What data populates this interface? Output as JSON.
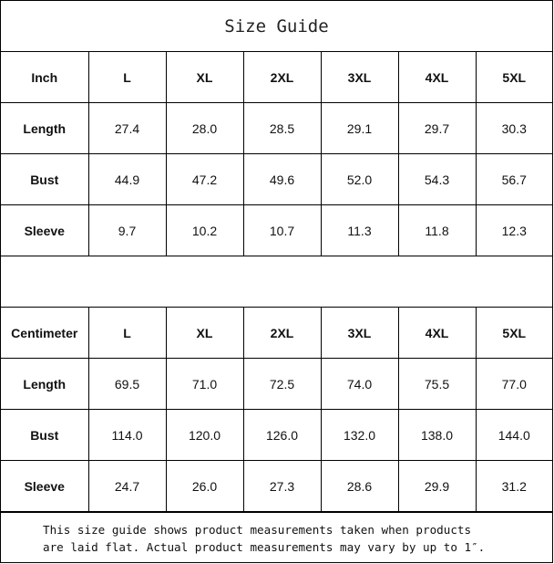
{
  "title": "Size Guide",
  "sizes": [
    "L",
    "XL",
    "2XL",
    "3XL",
    "4XL",
    "5XL"
  ],
  "inch": {
    "label": "Inch",
    "rows": [
      {
        "name": "Length",
        "values": [
          "27.4",
          "28.0",
          "28.5",
          "29.1",
          "29.7",
          "30.3"
        ]
      },
      {
        "name": "Bust",
        "values": [
          "44.9",
          "47.2",
          "49.6",
          "52.0",
          "54.3",
          "56.7"
        ]
      },
      {
        "name": "Sleeve",
        "values": [
          "9.7",
          "10.2",
          "10.7",
          "11.3",
          "11.8",
          "12.3"
        ]
      }
    ]
  },
  "centimeter": {
    "label": "Centimeter",
    "rows": [
      {
        "name": "Length",
        "values": [
          "69.5",
          "71.0",
          "72.5",
          "74.0",
          "75.5",
          "77.0"
        ]
      },
      {
        "name": "Bust",
        "values": [
          "114.0",
          "120.0",
          "126.0",
          "132.0",
          "138.0",
          "144.0"
        ]
      },
      {
        "name": "Sleeve",
        "values": [
          "24.7",
          "26.0",
          "27.3",
          "28.6",
          "29.9",
          "31.2"
        ]
      }
    ]
  },
  "footer": {
    "line1": "This size guide shows product measurements taken when products",
    "line2": "are laid flat. Actual product measurements may vary by up to 1″."
  }
}
